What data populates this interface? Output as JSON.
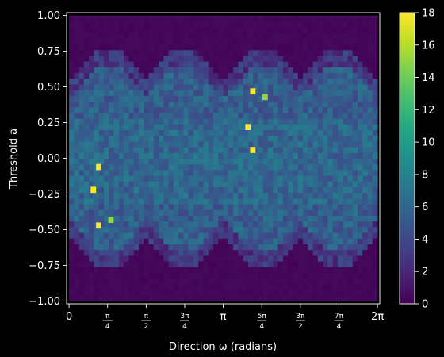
{
  "chart_data": {
    "type": "heatmap",
    "title": "",
    "xlabel": "Direction ω (radians)",
    "ylabel": "Threshold a",
    "xlim": [
      -0.05,
      6.33
    ],
    "ylim": [
      -1.02,
      1.02
    ],
    "x_ticks": [
      {
        "value": 0,
        "label": "0"
      },
      {
        "value": 0.7854,
        "label": "π/4"
      },
      {
        "value": 1.5708,
        "label": "π/2"
      },
      {
        "value": 2.3562,
        "label": "3π/4"
      },
      {
        "value": 3.1416,
        "label": "π"
      },
      {
        "value": 3.927,
        "label": "5π/4"
      },
      {
        "value": 4.7124,
        "label": "3π/2"
      },
      {
        "value": 5.4978,
        "label": "7π/4"
      },
      {
        "value": 6.2832,
        "label": "2π"
      }
    ],
    "y_ticks": [
      "1.00",
      "0.75",
      "0.50",
      "0.25",
      "0.00",
      "−0.25",
      "−0.50",
      "−0.75",
      "−1.00"
    ],
    "y_tick_values": [
      1.0,
      0.75,
      0.5,
      0.25,
      0.0,
      -0.25,
      -0.5,
      -0.75,
      -1.0
    ],
    "colorbar": {
      "min": 0,
      "max": 18,
      "ticks": [
        "0",
        "2",
        "4",
        "6",
        "8",
        "10",
        "12",
        "14",
        "16",
        "18"
      ],
      "colormap": "viridis"
    },
    "grid": false,
    "bins_x": 62,
    "bins_y": 50,
    "cell_counts_note": "estimated counts; background ~0, lobes ~4-7, peaks 18",
    "peaks": [
      {
        "x": 0.6,
        "y": -0.06,
        "value": 18
      },
      {
        "x": 0.49,
        "y": -0.22,
        "value": 18
      },
      {
        "x": 0.6,
        "y": -0.47,
        "value": 18
      },
      {
        "x": 3.74,
        "y": 0.47,
        "value": 18
      },
      {
        "x": 3.64,
        "y": 0.22,
        "value": 18
      },
      {
        "x": 3.74,
        "y": 0.06,
        "value": 18
      },
      {
        "x": 0.85,
        "y": -0.43,
        "value": 15
      },
      {
        "x": 3.99,
        "y": 0.43,
        "value": 15
      }
    ]
  }
}
